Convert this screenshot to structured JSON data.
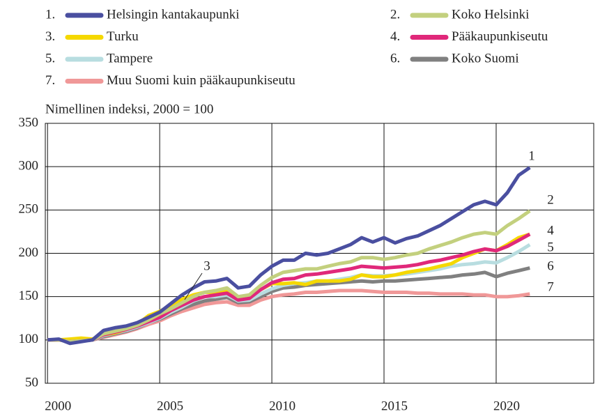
{
  "chart_data": {
    "type": "line",
    "ylabel": "Nimellinen indeksi, 2000 = 100",
    "xlim": [
      1999.9,
      2024.35
    ],
    "ylim": [
      50,
      350
    ],
    "xticks": [
      2000,
      2005,
      2010,
      2015,
      2020
    ],
    "yticks": [
      50,
      100,
      150,
      200,
      250,
      300,
      350
    ],
    "grid": true,
    "x": [
      2000,
      2000.5,
      2001,
      2001.5,
      2002,
      2002.5,
      2003,
      2003.5,
      2004,
      2004.5,
      2005,
      2005.5,
      2006,
      2006.5,
      2007,
      2007.5,
      2008,
      2008.5,
      2009,
      2009.5,
      2010,
      2010.5,
      2011,
      2011.5,
      2012,
      2012.5,
      2013,
      2013.5,
      2014,
      2014.5,
      2015,
      2015.5,
      2016,
      2016.5,
      2017,
      2017.5,
      2018,
      2018.5,
      2019,
      2019.5,
      2020,
      2020.5,
      2021,
      2021.5
    ],
    "series": [
      {
        "name": "Helsingin kantakaupunki",
        "legend_label": "1.",
        "label": "1",
        "color": "#4a4fa0",
        "values": [
          100,
          101,
          96,
          98,
          100,
          111,
          114,
          116,
          120,
          126,
          132,
          142,
          152,
          160,
          167,
          168,
          171,
          160,
          162,
          175,
          185,
          192,
          192,
          200,
          198,
          200,
          205,
          210,
          218,
          213,
          218,
          212,
          217,
          220,
          226,
          232,
          240,
          248,
          256,
          260,
          256,
          270,
          290,
          299
        ]
      },
      {
        "name": "Koko Helsinki",
        "legend_label": "2.",
        "label": "2",
        "color": "#c3d07e",
        "values": [
          100,
          100,
          98,
          99,
          100,
          107,
          110,
          113,
          117,
          123,
          130,
          136,
          143,
          150,
          155,
          157,
          160,
          150,
          152,
          163,
          172,
          178,
          180,
          182,
          182,
          185,
          188,
          190,
          195,
          195,
          193,
          195,
          198,
          200,
          205,
          209,
          213,
          218,
          222,
          224,
          222,
          232,
          240,
          249
        ]
      },
      {
        "name": "Turku",
        "legend_label": "3.",
        "label": "3",
        "color": "#f5d800",
        "values": [
          100,
          100,
          101,
          102,
          101,
          106,
          108,
          112,
          118,
          128,
          133,
          140,
          147,
          152,
          155,
          155,
          158,
          148,
          150,
          158,
          165,
          165,
          166,
          164,
          168,
          168,
          168,
          170,
          175,
          173,
          173,
          175,
          178,
          180,
          182,
          185,
          188,
          195,
          200,
          205,
          203,
          210,
          218,
          222
        ]
      },
      {
        "name": "Pääkaupunkiseutu",
        "legend_label": "4.",
        "label": "4",
        "color": "#e0287a",
        "values": [
          100,
          100,
          98,
          99,
          100,
          106,
          109,
          112,
          116,
          121,
          126,
          134,
          140,
          146,
          150,
          152,
          154,
          146,
          148,
          158,
          166,
          170,
          171,
          175,
          176,
          178,
          180,
          182,
          185,
          184,
          183,
          184,
          185,
          187,
          190,
          192,
          195,
          198,
          202,
          205,
          203,
          208,
          215,
          222
        ]
      },
      {
        "name": "Tampere",
        "legend_label": "5.",
        "label": "5",
        "color": "#b8dde0",
        "values": [
          100,
          100,
          99,
          100,
          100,
          105,
          108,
          111,
          115,
          120,
          125,
          132,
          138,
          145,
          150,
          150,
          152,
          145,
          146,
          153,
          159,
          163,
          165,
          166,
          168,
          168,
          170,
          172,
          175,
          174,
          174,
          175,
          176,
          178,
          180,
          182,
          185,
          187,
          188,
          190,
          189,
          195,
          202,
          210
        ]
      },
      {
        "name": "Koko Suomi",
        "legend_label": "6.",
        "label": "6",
        "color": "#808080",
        "values": [
          100,
          100,
          99,
          100,
          100,
          104,
          107,
          110,
          114,
          120,
          124,
          130,
          136,
          141,
          145,
          147,
          149,
          143,
          144,
          150,
          156,
          160,
          161,
          163,
          164,
          165,
          166,
          167,
          168,
          167,
          168,
          168,
          169,
          170,
          171,
          172,
          173,
          175,
          176,
          178,
          173,
          177,
          180,
          183
        ]
      },
      {
        "name": "Muu Suomi kuin pääkaupunkiseutu",
        "legend_label": "7.",
        "label": "7",
        "color": "#f09898",
        "values": [
          100,
          100,
          99,
          99,
          100,
          103,
          106,
          109,
          113,
          118,
          122,
          128,
          133,
          137,
          141,
          143,
          144,
          140,
          140,
          146,
          150,
          152,
          153,
          155,
          155,
          156,
          157,
          157,
          157,
          156,
          155,
          155,
          155,
          154,
          154,
          153,
          153,
          153,
          152,
          152,
          150,
          150,
          151,
          153
        ]
      }
    ]
  }
}
